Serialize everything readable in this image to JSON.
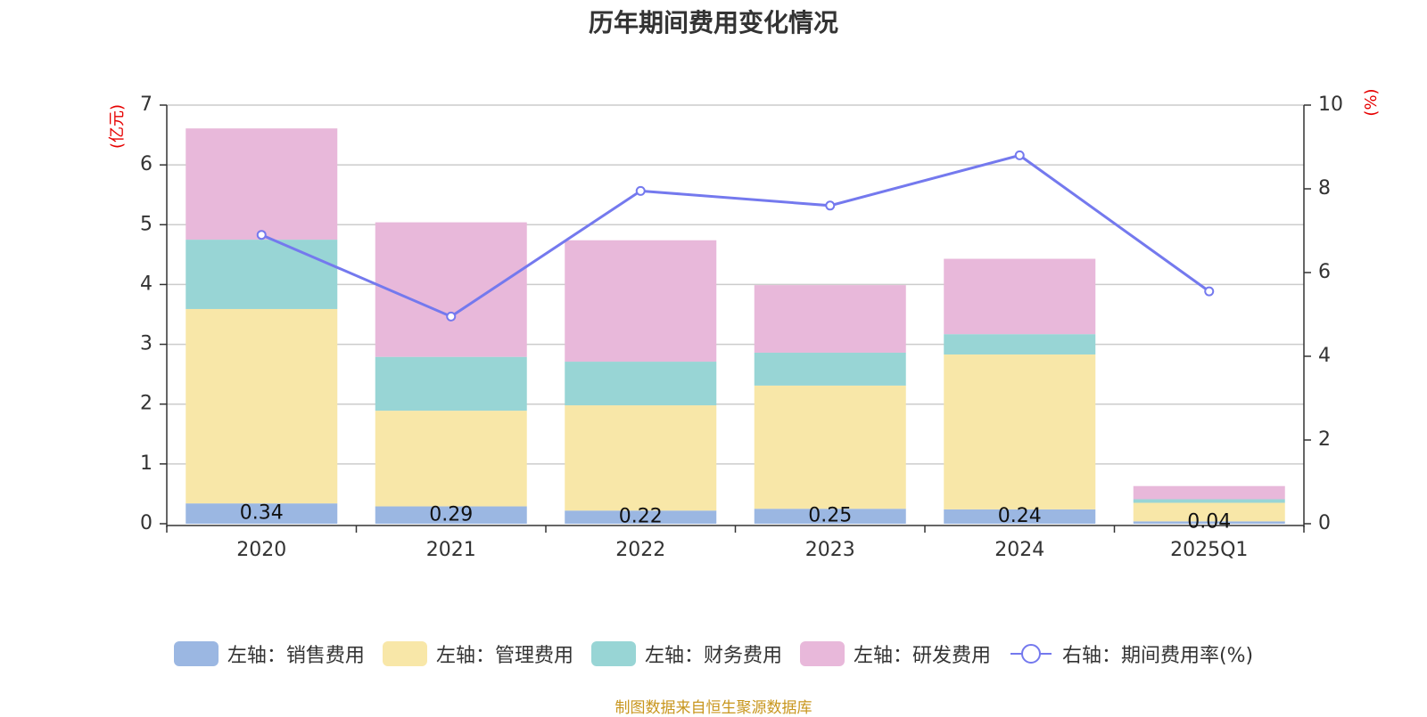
{
  "chart_data": {
    "type": "bar",
    "title": "历年期间费用变化情况",
    "categories": [
      "2020",
      "2021",
      "2022",
      "2023",
      "2024",
      "2025Q1"
    ],
    "left_axis": {
      "unit": "(亿元)",
      "ylim": [
        0,
        7
      ],
      "ticks": [
        "0",
        "1",
        "2",
        "3",
        "4",
        "5",
        "6",
        "7"
      ]
    },
    "right_axis": {
      "unit": "(%)",
      "ylim": [
        0,
        10
      ],
      "ticks": [
        "0",
        "2",
        "4",
        "6",
        "8",
        "10"
      ]
    },
    "series": [
      {
        "name": "左轴：销售费用",
        "type": "stacked-bar",
        "axis": "left",
        "color": "#9bb7e2",
        "values": [
          0.34,
          0.29,
          0.22,
          0.25,
          0.24,
          0.04
        ],
        "labels": [
          "0.34",
          "0.29",
          "0.22",
          "0.25",
          "0.24",
          "0.04"
        ]
      },
      {
        "name": "左轴：管理费用",
        "type": "stacked-bar",
        "axis": "left",
        "color": "#f8e7a8",
        "values": [
          3.25,
          1.6,
          1.76,
          2.06,
          2.59,
          0.31
        ]
      },
      {
        "name": "左轴：财务费用",
        "type": "stacked-bar",
        "axis": "left",
        "color": "#98d5d5",
        "values": [
          1.16,
          0.9,
          0.73,
          0.55,
          0.34,
          0.06
        ]
      },
      {
        "name": "左轴：研发费用",
        "type": "stacked-bar",
        "axis": "left",
        "color": "#e8b8da",
        "values": [
          1.86,
          2.25,
          2.03,
          1.13,
          1.26,
          0.22
        ]
      },
      {
        "name": "右轴：期间费用率(%)",
        "type": "line",
        "axis": "right",
        "color": "#7479ee",
        "values": [
          6.9,
          4.95,
          7.95,
          7.6,
          8.8,
          5.55
        ]
      }
    ],
    "grid": true,
    "legend_position": "bottom"
  },
  "source": "制图数据来自恒生聚源数据库"
}
